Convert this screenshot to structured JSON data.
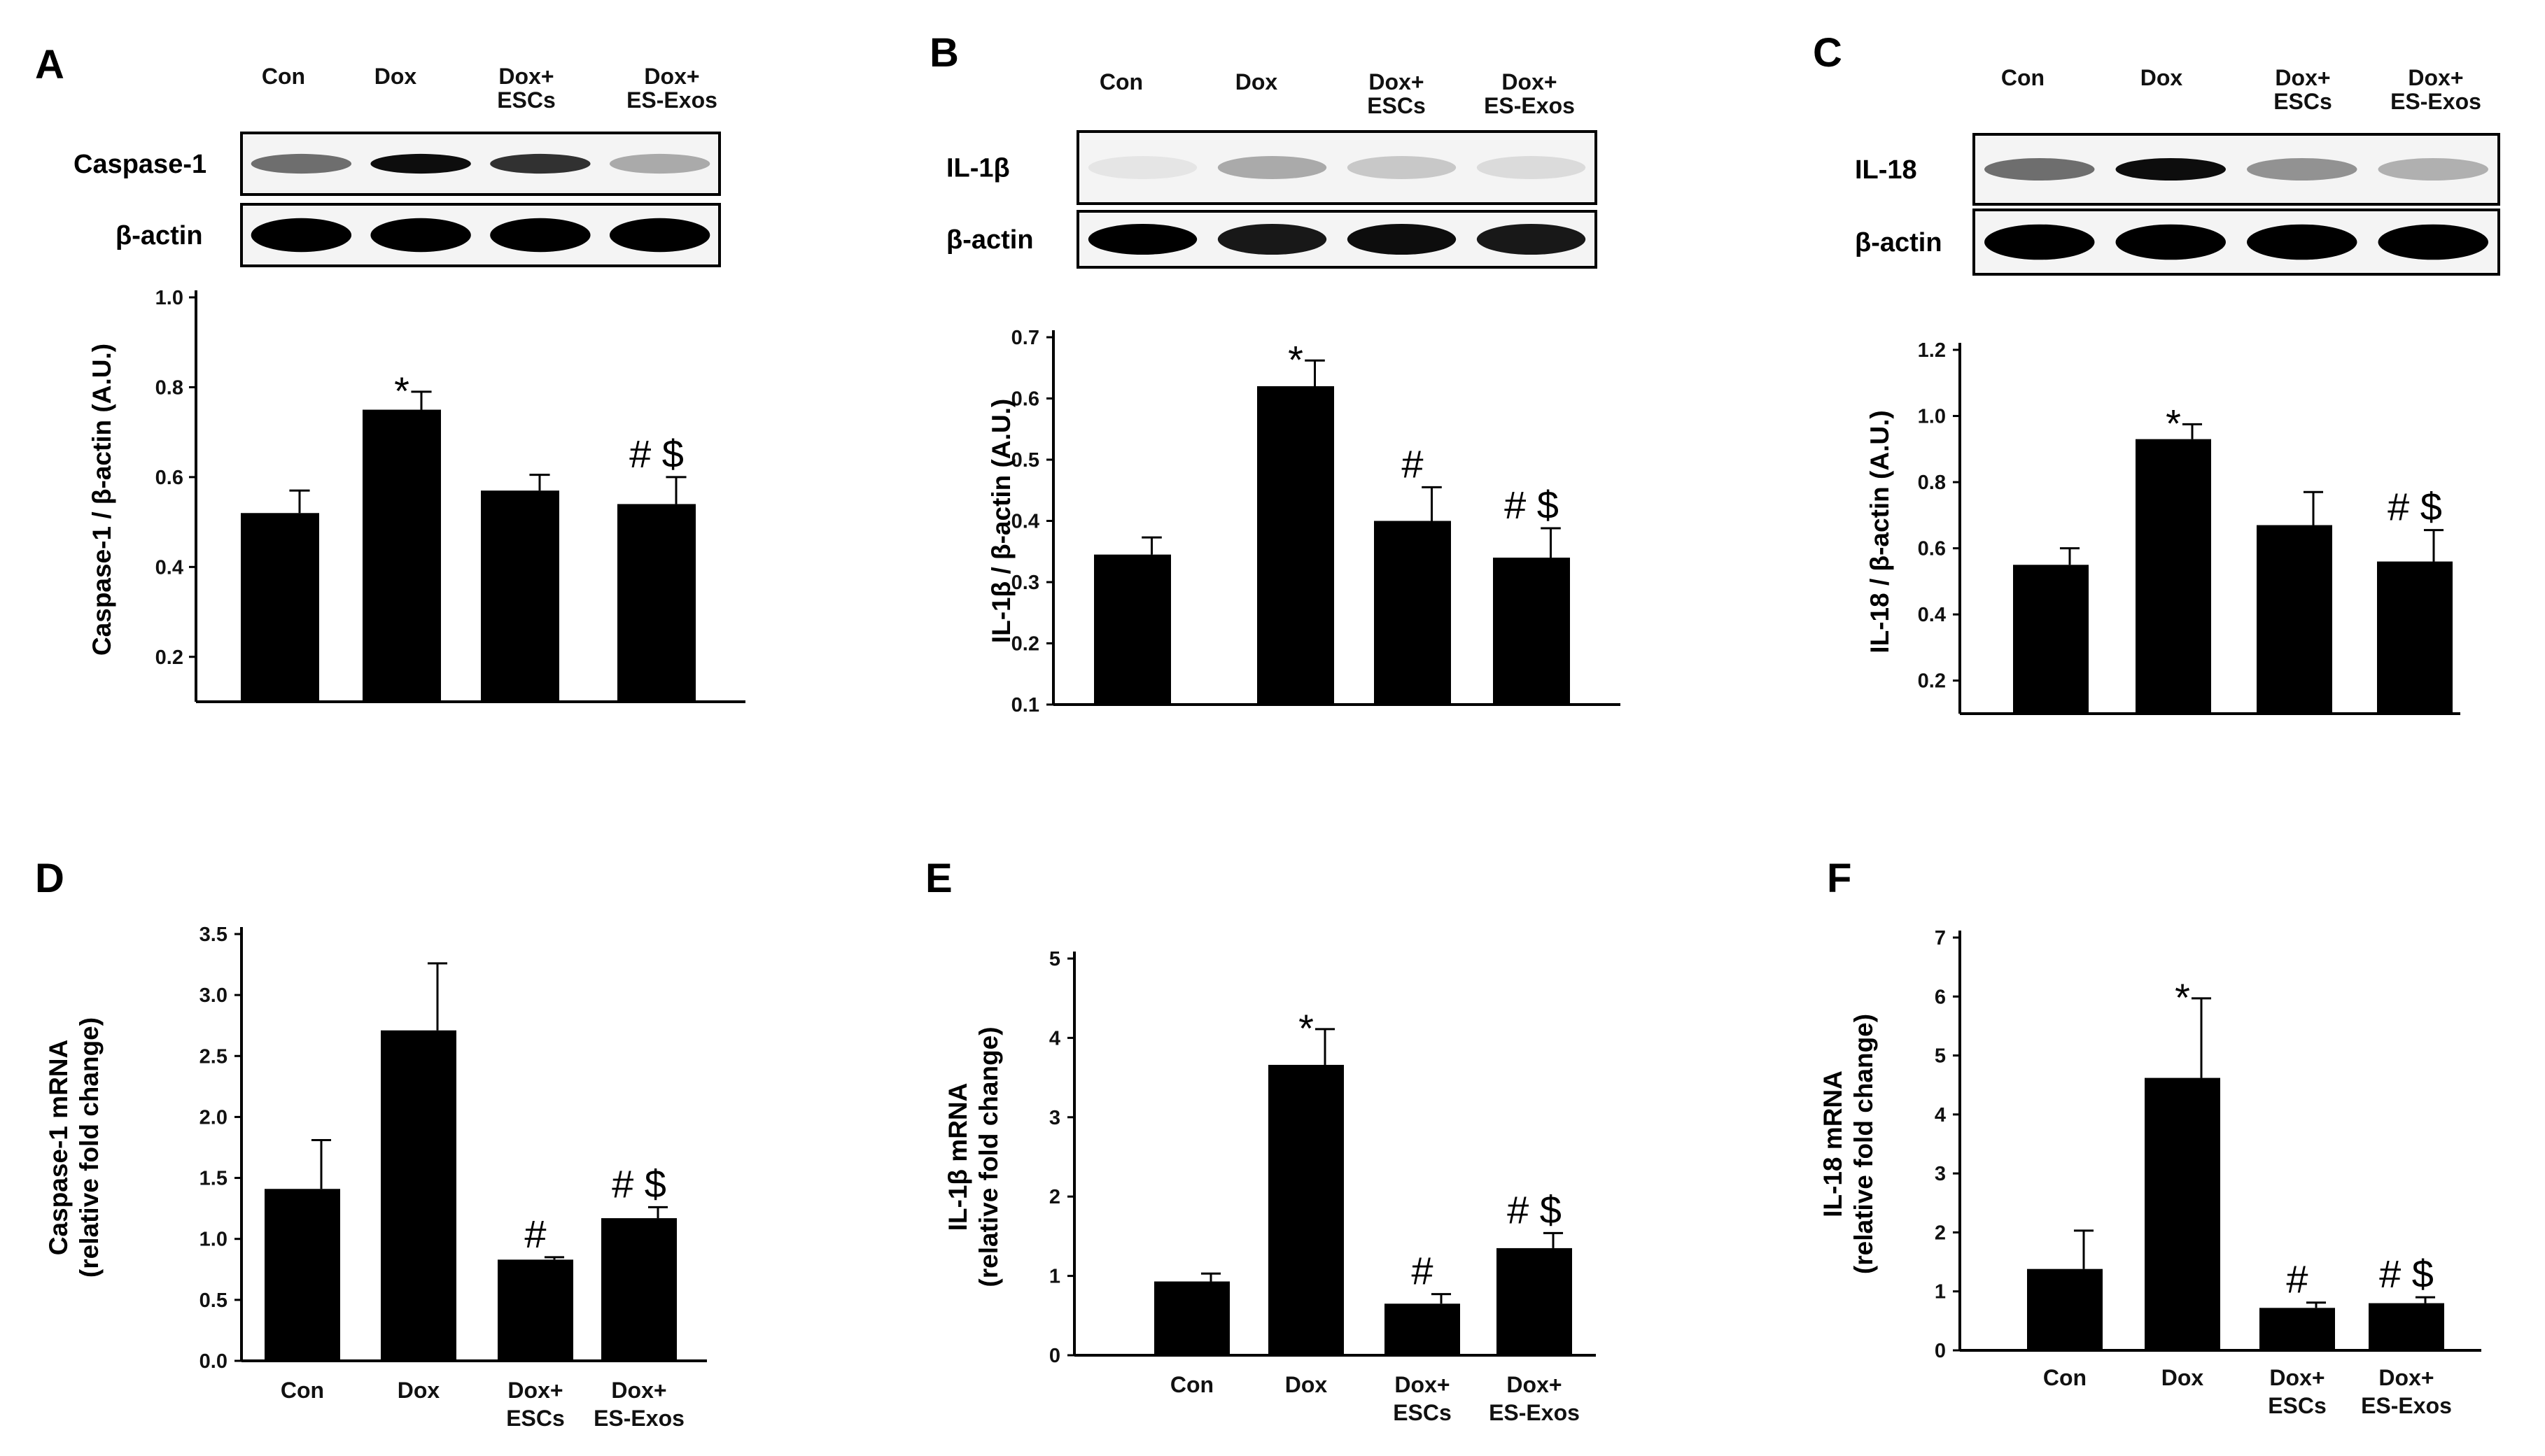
{
  "chart_data": [
    {
      "panel": "A",
      "type": "bar",
      "categories": [
        "Con",
        "Dox",
        "Dox+ ESCs",
        "Dox+ ES-Exos"
      ],
      "values": [
        0.52,
        0.75,
        0.57,
        0.54
      ],
      "errors": [
        0.05,
        0.04,
        0.035,
        0.06
      ],
      "annotations": [
        "",
        "*",
        "",
        "# $"
      ],
      "ylabel": "Caspase-1 / β-actin (A.U.)",
      "ylim": [
        0.1,
        1.0
      ],
      "yticks": [
        "0.2",
        "0.4",
        "0.6",
        "0.8",
        "1.0"
      ],
      "blot": {
        "lanes": [
          "Con",
          "Dox",
          "Dox+\nESCs",
          "Dox+\nES-Exos"
        ],
        "rows": [
          "Caspase-1",
          "β-actin"
        ]
      }
    },
    {
      "panel": "B",
      "type": "bar",
      "categories": [
        "Con",
        "Dox",
        "Dox+ ESCs",
        "Dox+ ES-Exos"
      ],
      "values": [
        0.345,
        0.62,
        0.4,
        0.34
      ],
      "errors": [
        0.028,
        0.042,
        0.055,
        0.048
      ],
      "annotations": [
        "",
        "*",
        "#",
        "# $"
      ],
      "ylabel": "IL-1β / β-actin (A.U.)",
      "ylim": [
        0.1,
        0.7
      ],
      "yticks": [
        "0.1",
        "0.2",
        "0.3",
        "0.4",
        "0.5",
        "0.6",
        "0.7"
      ],
      "blot": {
        "lanes": [
          "Con",
          "Dox",
          "Dox+\nESCs",
          "Dox+\nES-Exos"
        ],
        "rows": [
          "IL-1β",
          "β-actin"
        ]
      }
    },
    {
      "panel": "C",
      "type": "bar",
      "categories": [
        "Con",
        "Dox",
        "Dox+ ESCs",
        "Dox+ ES-Exos"
      ],
      "values": [
        0.55,
        0.93,
        0.67,
        0.56
      ],
      "errors": [
        0.05,
        0.045,
        0.1,
        0.095
      ],
      "annotations": [
        "",
        "*",
        "",
        "# $"
      ],
      "ylabel": "IL-18 / β-actin (A.U.)",
      "ylim": [
        0.1,
        1.2
      ],
      "yticks": [
        "0.2",
        "0.4",
        "0.6",
        "0.8",
        "1.0",
        "1.2"
      ],
      "blot": {
        "lanes": [
          "Con",
          "Dox",
          "Dox+\nESCs",
          "Dox+\nES-Exos"
        ],
        "rows": [
          "IL-18",
          "β-actin"
        ]
      }
    },
    {
      "panel": "D",
      "type": "bar",
      "categories": [
        "Con",
        "Dox",
        "Dox+\nESCs",
        "Dox+\nES-Exos"
      ],
      "values": [
        1.41,
        2.71,
        0.83,
        1.17
      ],
      "errors": [
        0.4,
        0.55,
        0.02,
        0.09
      ],
      "annotations": [
        "",
        "",
        "#",
        "# $"
      ],
      "ylabel": "Caspase-1 mRNA\n(relative fold change)",
      "ylim": [
        0,
        3.5
      ],
      "yticks": [
        "0.0",
        "0.5",
        "1.0",
        "1.5",
        "2.0",
        "2.5",
        "3.0",
        "3.5"
      ]
    },
    {
      "panel": "E",
      "type": "bar",
      "categories": [
        "Con",
        "Dox",
        "Dox+\nESCs",
        "Dox+\nES-Exos"
      ],
      "values": [
        0.93,
        3.66,
        0.65,
        1.35
      ],
      "errors": [
        0.1,
        0.45,
        0.12,
        0.19
      ],
      "annotations": [
        "",
        "*",
        "#",
        "# $"
      ],
      "ylabel": "IL-1β mRNA\n(relative fold change)",
      "ylim": [
        0,
        5
      ],
      "yticks": [
        "0",
        "1",
        "2",
        "3",
        "4",
        "5"
      ]
    },
    {
      "panel": "F",
      "type": "bar",
      "categories": [
        "Con",
        "Dox",
        "Dox+\nESCs",
        "Dox+\nES-Exos"
      ],
      "values": [
        1.38,
        4.62,
        0.72,
        0.8
      ],
      "errors": [
        0.65,
        1.35,
        0.09,
        0.1
      ],
      "annotations": [
        "",
        "*",
        "#",
        "# $"
      ],
      "ylabel": "IL-18 mRNA\n(relative fold change)",
      "ylim": [
        0,
        7
      ],
      "yticks": [
        "0",
        "1",
        "2",
        "3",
        "4",
        "5",
        "6",
        "7"
      ]
    }
  ]
}
